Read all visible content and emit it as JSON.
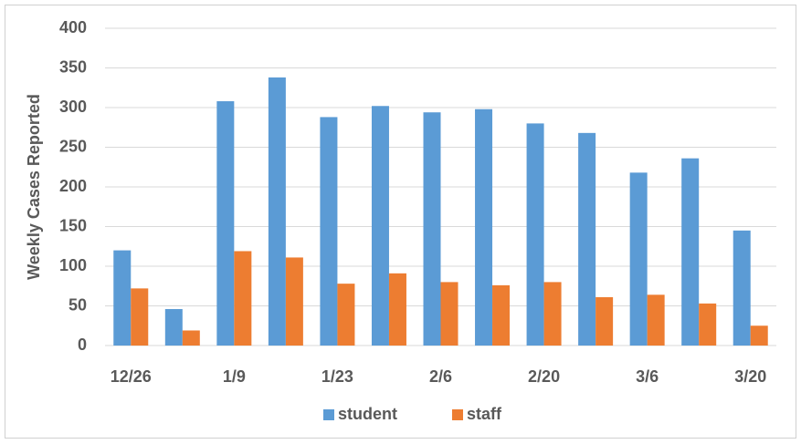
{
  "chart_data": {
    "type": "bar",
    "ylabel": "Weekly Cases Reported",
    "categories": [
      "12/26",
      null,
      "1/9",
      null,
      "1/23",
      null,
      "2/6",
      null,
      "2/20",
      null,
      "3/6",
      null,
      "3/20"
    ],
    "series": [
      {
        "name": "student",
        "color": "#5b9bd5",
        "values": [
          120,
          46,
          308,
          338,
          288,
          302,
          294,
          298,
          280,
          268,
          218,
          236,
          145
        ]
      },
      {
        "name": "staff",
        "color": "#ed7d31",
        "values": [
          72,
          19,
          119,
          111,
          78,
          91,
          80,
          76,
          80,
          61,
          64,
          53,
          25
        ]
      }
    ],
    "ylim": [
      0,
      400
    ],
    "yticks": [
      0,
      50,
      100,
      150,
      200,
      250,
      300,
      350,
      400
    ],
    "grid": true,
    "legend": "bottom"
  }
}
